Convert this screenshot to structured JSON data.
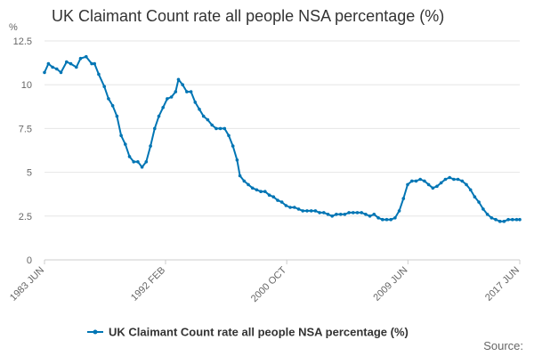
{
  "chart_data": {
    "type": "line",
    "title": "UK Claimant Count rate all people NSA percentage (%)",
    "yunit": "%",
    "ylim": [
      0,
      12.5
    ],
    "yticks": [
      0,
      2.5,
      5,
      7.5,
      10,
      12.5
    ],
    "ytick_labels": [
      "0",
      "2.5",
      "5",
      "7.5",
      "10",
      "12.5"
    ],
    "xlim": [
      1983.42,
      2017.42
    ],
    "xticks": [
      {
        "x": 1983.42,
        "label": "1983 JUN"
      },
      {
        "x": 1992.08,
        "label": "1992 FEB"
      },
      {
        "x": 2000.75,
        "label": "2000 OCT"
      },
      {
        "x": 2009.42,
        "label": "2009 JUN"
      },
      {
        "x": 2017.42,
        "label": "2017 JUN"
      }
    ],
    "grid": true,
    "legend_position": "bottom",
    "color": "#0075b4",
    "series": [
      {
        "name": "UK Claimant Count rate all people NSA percentage (%)",
        "points": [
          [
            1983.42,
            10.7
          ],
          [
            1983.7,
            11.2
          ],
          [
            1984.0,
            11.0
          ],
          [
            1984.3,
            10.9
          ],
          [
            1984.6,
            10.7
          ],
          [
            1985.0,
            11.3
          ],
          [
            1985.3,
            11.2
          ],
          [
            1985.7,
            11.0
          ],
          [
            1986.0,
            11.5
          ],
          [
            1986.4,
            11.6
          ],
          [
            1986.8,
            11.2
          ],
          [
            1987.0,
            11.2
          ],
          [
            1987.3,
            10.6
          ],
          [
            1987.7,
            9.9
          ],
          [
            1988.0,
            9.2
          ],
          [
            1988.3,
            8.8
          ],
          [
            1988.6,
            8.2
          ],
          [
            1988.9,
            7.1
          ],
          [
            1989.2,
            6.6
          ],
          [
            1989.5,
            5.9
          ],
          [
            1989.8,
            5.6
          ],
          [
            1990.1,
            5.6
          ],
          [
            1990.4,
            5.3
          ],
          [
            1990.7,
            5.6
          ],
          [
            1991.0,
            6.5
          ],
          [
            1991.3,
            7.5
          ],
          [
            1991.6,
            8.2
          ],
          [
            1991.9,
            8.7
          ],
          [
            1992.2,
            9.2
          ],
          [
            1992.5,
            9.3
          ],
          [
            1992.8,
            9.6
          ],
          [
            1993.0,
            10.3
          ],
          [
            1993.3,
            10.0
          ],
          [
            1993.6,
            9.6
          ],
          [
            1993.9,
            9.6
          ],
          [
            1994.2,
            9.0
          ],
          [
            1994.5,
            8.6
          ],
          [
            1994.8,
            8.2
          ],
          [
            1995.1,
            8.0
          ],
          [
            1995.4,
            7.7
          ],
          [
            1995.7,
            7.5
          ],
          [
            1996.0,
            7.5
          ],
          [
            1996.3,
            7.5
          ],
          [
            1996.6,
            7.1
          ],
          [
            1996.9,
            6.5
          ],
          [
            1997.2,
            5.7
          ],
          [
            1997.4,
            4.8
          ],
          [
            1997.7,
            4.5
          ],
          [
            1998.0,
            4.3
          ],
          [
            1998.3,
            4.1
          ],
          [
            1998.6,
            4.0
          ],
          [
            1998.9,
            3.9
          ],
          [
            1999.2,
            3.9
          ],
          [
            1999.5,
            3.7
          ],
          [
            1999.8,
            3.6
          ],
          [
            2000.1,
            3.4
          ],
          [
            2000.4,
            3.3
          ],
          [
            2000.7,
            3.1
          ],
          [
            2001.0,
            3.0
          ],
          [
            2001.3,
            3.0
          ],
          [
            2001.6,
            2.9
          ],
          [
            2001.9,
            2.8
          ],
          [
            2002.2,
            2.8
          ],
          [
            2002.5,
            2.8
          ],
          [
            2002.8,
            2.8
          ],
          [
            2003.1,
            2.7
          ],
          [
            2003.4,
            2.7
          ],
          [
            2003.7,
            2.6
          ],
          [
            2004.0,
            2.5
          ],
          [
            2004.3,
            2.6
          ],
          [
            2004.6,
            2.6
          ],
          [
            2004.9,
            2.6
          ],
          [
            2005.2,
            2.7
          ],
          [
            2005.5,
            2.7
          ],
          [
            2005.8,
            2.7
          ],
          [
            2006.1,
            2.7
          ],
          [
            2006.4,
            2.6
          ],
          [
            2006.7,
            2.5
          ],
          [
            2007.0,
            2.6
          ],
          [
            2007.3,
            2.4
          ],
          [
            2007.6,
            2.3
          ],
          [
            2007.9,
            2.3
          ],
          [
            2008.2,
            2.3
          ],
          [
            2008.5,
            2.4
          ],
          [
            2008.8,
            2.8
          ],
          [
            2009.1,
            3.5
          ],
          [
            2009.4,
            4.3
          ],
          [
            2009.7,
            4.5
          ],
          [
            2010.0,
            4.5
          ],
          [
            2010.3,
            4.6
          ],
          [
            2010.6,
            4.5
          ],
          [
            2010.9,
            4.3
          ],
          [
            2011.2,
            4.1
          ],
          [
            2011.5,
            4.2
          ],
          [
            2011.8,
            4.4
          ],
          [
            2012.1,
            4.6
          ],
          [
            2012.4,
            4.7
          ],
          [
            2012.7,
            4.6
          ],
          [
            2013.0,
            4.6
          ],
          [
            2013.3,
            4.5
          ],
          [
            2013.6,
            4.3
          ],
          [
            2013.9,
            4.0
          ],
          [
            2014.2,
            3.6
          ],
          [
            2014.5,
            3.3
          ],
          [
            2014.8,
            2.9
          ],
          [
            2015.1,
            2.6
          ],
          [
            2015.4,
            2.4
          ],
          [
            2015.7,
            2.3
          ],
          [
            2016.0,
            2.2
          ],
          [
            2016.3,
            2.2
          ],
          [
            2016.6,
            2.3
          ],
          [
            2016.9,
            2.3
          ],
          [
            2017.2,
            2.3
          ],
          [
            2017.42,
            2.3
          ]
        ]
      }
    ]
  },
  "source_label": "Source:"
}
